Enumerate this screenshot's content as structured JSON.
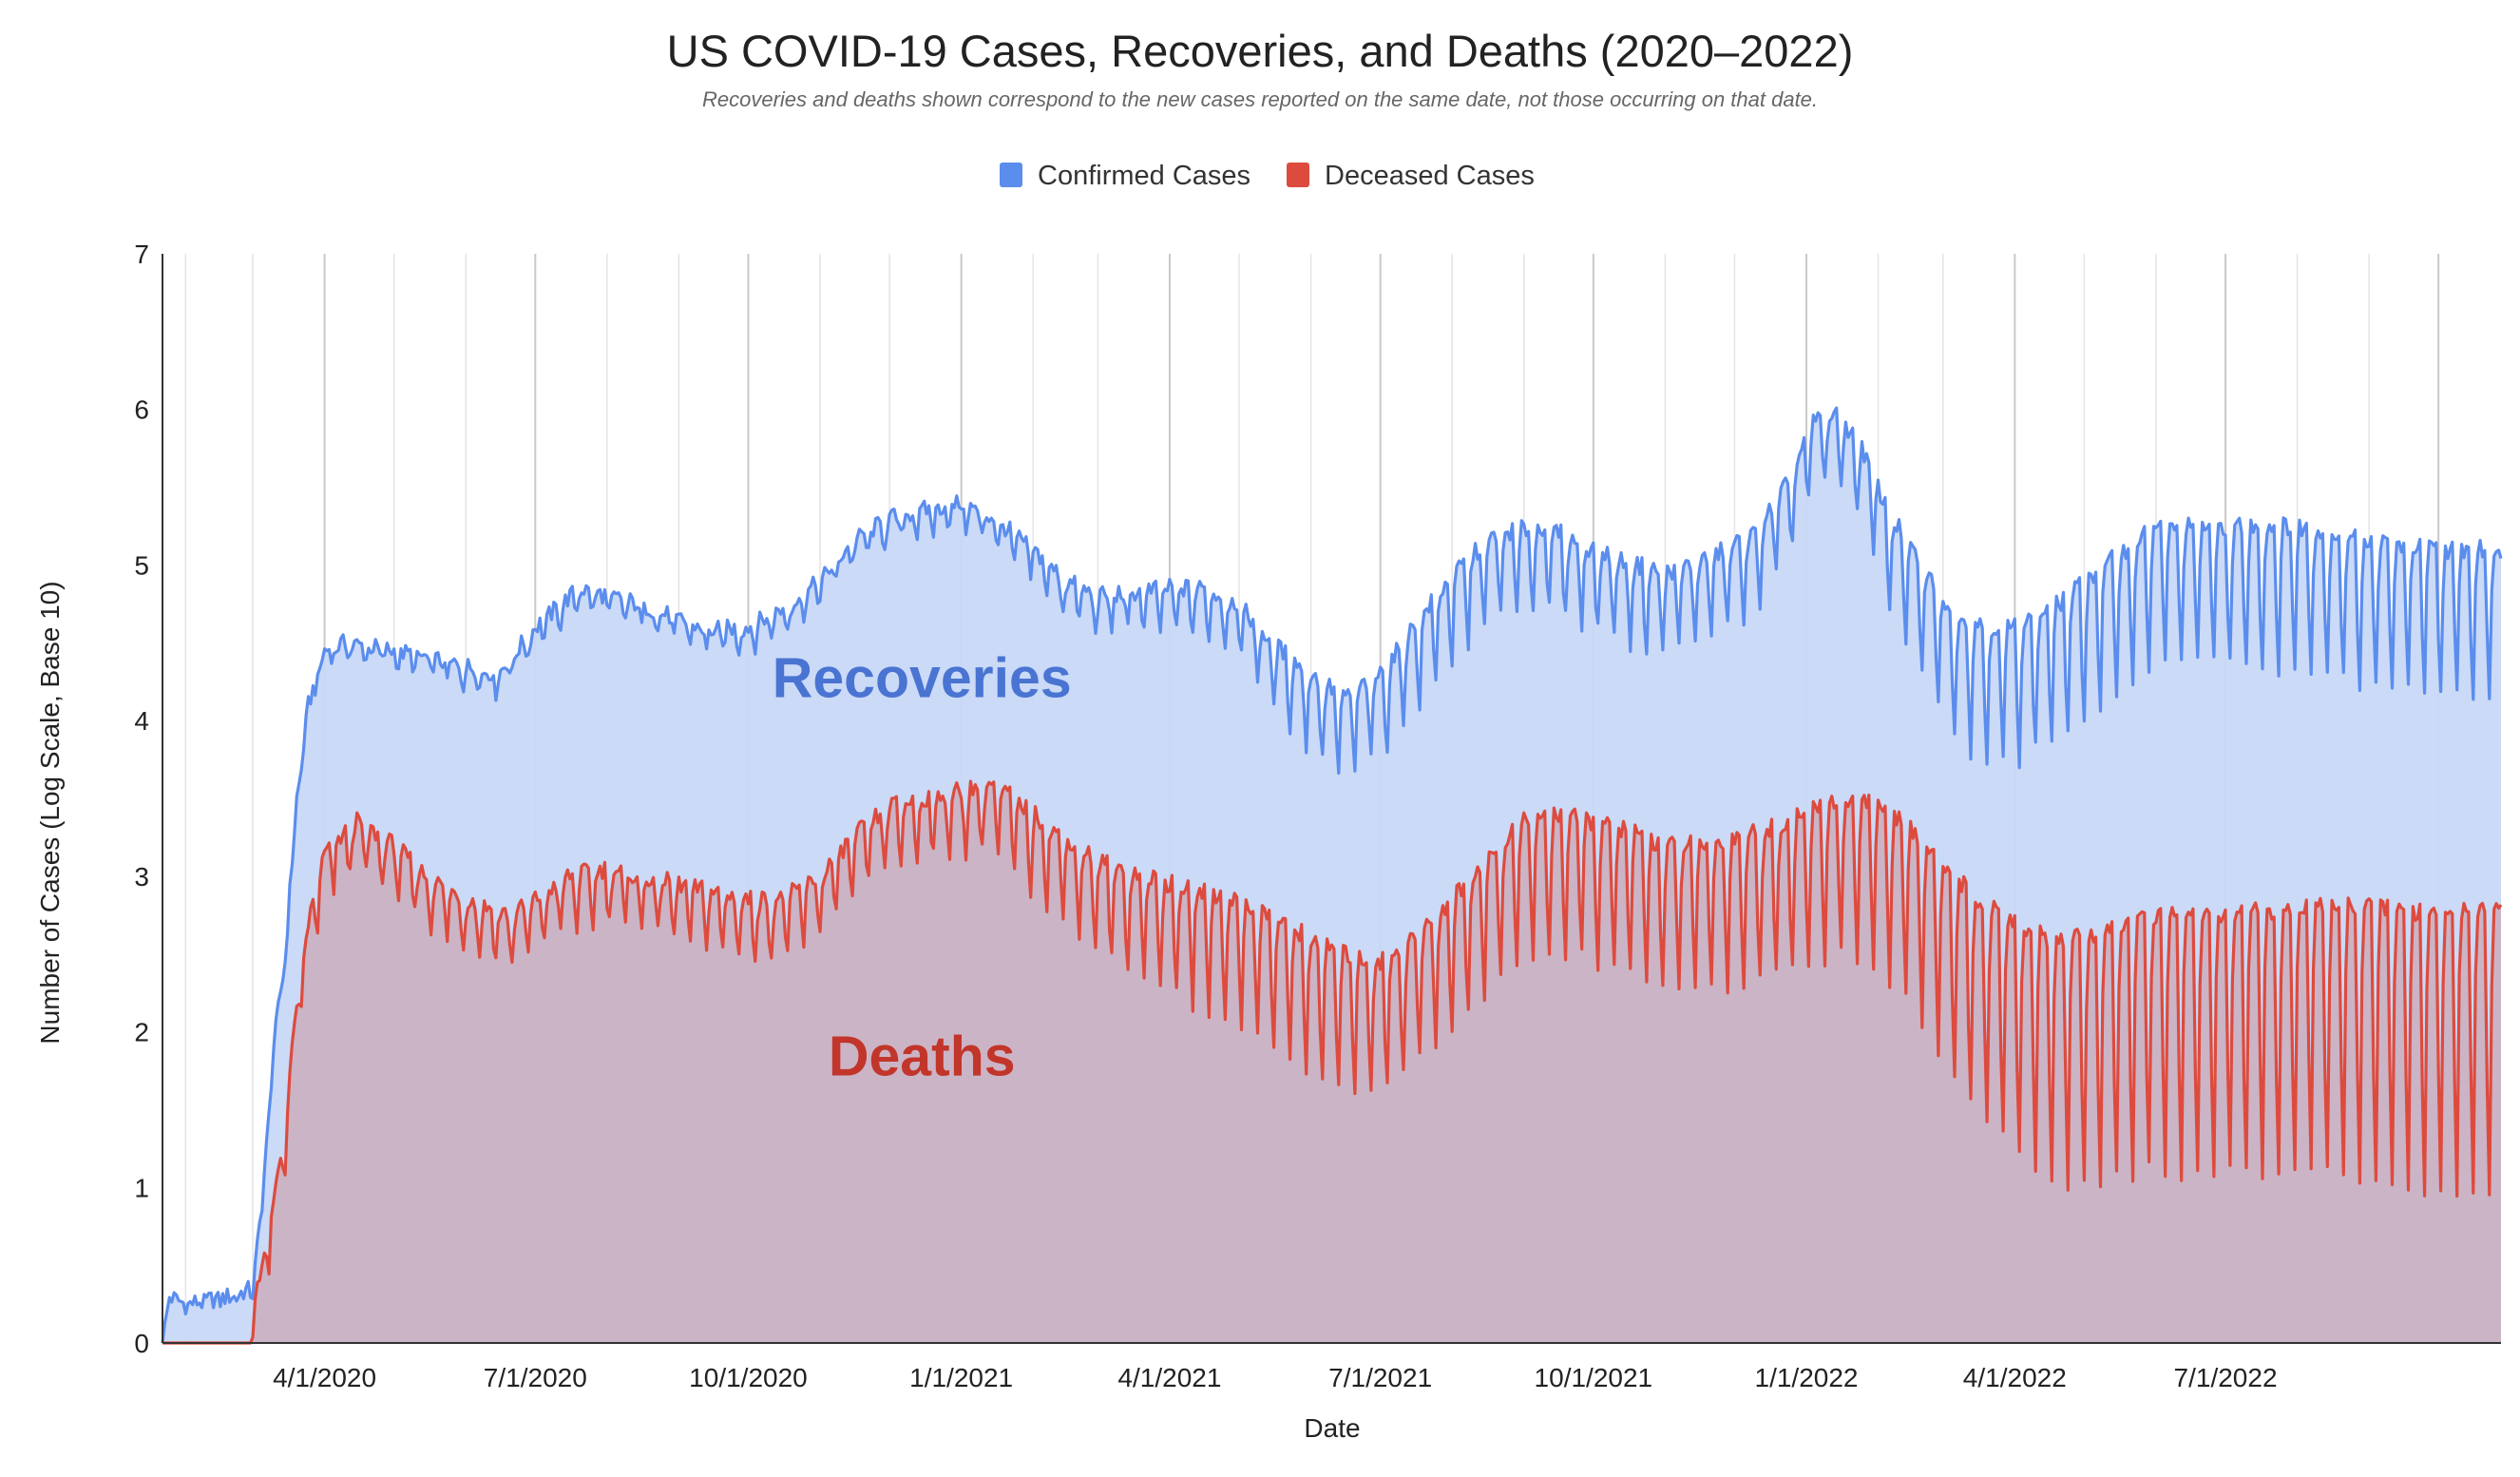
{
  "chart_data": {
    "type": "area",
    "title": "US COVID-19 Cases, Recoveries, and Deaths (2020–2022)",
    "subtitle": "Recoveries and deaths shown correspond to the new cases reported on the same date, not those occurring on that date.",
    "xlabel": "Date",
    "ylabel": "Number of Cases (Log Scale, Base 10)",
    "x_range": [
      "2020-01-22",
      "2022-10-28"
    ],
    "ylim": [
      0,
      7
    ],
    "y_ticks": [
      "0",
      "1",
      "2",
      "3",
      "4",
      "5",
      "6",
      "7"
    ],
    "x_ticks": [
      {
        "date": "2020-04-01",
        "label": "4/1/2020"
      },
      {
        "date": "2020-07-01",
        "label": "7/1/2020"
      },
      {
        "date": "2020-10-01",
        "label": "10/1/2020"
      },
      {
        "date": "2021-01-01",
        "label": "1/1/2021"
      },
      {
        "date": "2021-04-01",
        "label": "4/1/2021"
      },
      {
        "date": "2021-07-01",
        "label": "7/1/2021"
      },
      {
        "date": "2021-10-01",
        "label": "10/1/2021"
      },
      {
        "date": "2022-01-01",
        "label": "1/1/2022"
      },
      {
        "date": "2022-04-01",
        "label": "4/1/2022"
      },
      {
        "date": "2022-07-01",
        "label": "7/1/2022"
      }
    ],
    "grid": true,
    "legend_position": "top-center",
    "annotations": [
      {
        "text": "Recoveries",
        "date": "2020-12-15",
        "y": 4.15,
        "color": "#4a74d2"
      },
      {
        "text": "Deaths",
        "date": "2020-12-15",
        "y": 1.72,
        "color": "#c2352a"
      }
    ],
    "series": [
      {
        "name": "Confirmed Cases",
        "color": "#5b8ded",
        "fill": "#c7d8f7",
        "weekly_dip": 0.07,
        "dip_schedule": [
          [
            "2020-01-22",
            0
          ],
          [
            "2020-03-15",
            0.05
          ],
          [
            "2020-06-01",
            0.12
          ],
          [
            "2021-01-01",
            0.15
          ],
          [
            "2021-05-01",
            0.3
          ],
          [
            "2021-06-01",
            0.5
          ],
          [
            "2021-08-01",
            0.55
          ],
          [
            "2021-12-01",
            0.5
          ],
          [
            "2022-01-20",
            0.4
          ],
          [
            "2022-02-15",
            0.7
          ],
          [
            "2022-03-15",
            0.85
          ],
          [
            "2022-10-28",
            0.95
          ]
        ],
        "trend": [
          [
            "2020-01-22",
            0.0
          ],
          [
            "2020-01-25",
            0.3
          ],
          [
            "2020-02-01",
            0.25
          ],
          [
            "2020-02-20",
            0.3
          ],
          [
            "2020-03-01",
            0.35
          ],
          [
            "2020-03-05",
            0.9
          ],
          [
            "2020-03-10",
            1.9
          ],
          [
            "2020-03-15",
            2.5
          ],
          [
            "2020-03-20",
            3.5
          ],
          [
            "2020-03-25",
            4.1
          ],
          [
            "2020-04-01",
            4.45
          ],
          [
            "2020-04-10",
            4.5
          ],
          [
            "2020-05-01",
            4.45
          ],
          [
            "2020-06-01",
            4.35
          ],
          [
            "2020-06-15",
            4.3
          ],
          [
            "2020-07-01",
            4.6
          ],
          [
            "2020-07-20",
            4.85
          ],
          [
            "2020-08-15",
            4.75
          ],
          [
            "2020-09-01",
            4.65
          ],
          [
            "2020-09-15",
            4.58
          ],
          [
            "2020-10-01",
            4.6
          ],
          [
            "2020-10-20",
            4.75
          ],
          [
            "2020-11-01",
            4.9
          ],
          [
            "2020-11-15",
            5.15
          ],
          [
            "2020-12-01",
            5.3
          ],
          [
            "2020-12-15",
            5.35
          ],
          [
            "2021-01-01",
            5.4
          ],
          [
            "2021-01-15",
            5.3
          ],
          [
            "2021-02-01",
            5.1
          ],
          [
            "2021-02-15",
            4.9
          ],
          [
            "2021-03-01",
            4.8
          ],
          [
            "2021-04-01",
            4.85
          ],
          [
            "2021-04-15",
            4.85
          ],
          [
            "2021-05-01",
            4.75
          ],
          [
            "2021-05-15",
            4.5
          ],
          [
            "2021-06-01",
            4.3
          ],
          [
            "2021-06-15",
            4.15
          ],
          [
            "2021-07-01",
            4.3
          ],
          [
            "2021-07-20",
            4.7
          ],
          [
            "2021-08-05",
            5.0
          ],
          [
            "2021-08-20",
            5.2
          ],
          [
            "2021-09-10",
            5.25
          ],
          [
            "2021-10-01",
            5.1
          ],
          [
            "2021-10-20",
            5.0
          ],
          [
            "2021-11-01",
            4.95
          ],
          [
            "2021-11-20",
            5.05
          ],
          [
            "2021-12-10",
            5.2
          ],
          [
            "2021-12-25",
            5.55
          ],
          [
            "2022-01-05",
            5.95
          ],
          [
            "2022-01-15",
            5.95
          ],
          [
            "2022-01-25",
            5.75
          ],
          [
            "2022-02-05",
            5.35
          ],
          [
            "2022-02-20",
            5.0
          ],
          [
            "2022-03-05",
            4.7
          ],
          [
            "2022-03-20",
            4.6
          ],
          [
            "2022-04-01",
            4.6
          ],
          [
            "2022-04-20",
            4.75
          ],
          [
            "2022-05-10",
            5.0
          ],
          [
            "2022-06-01",
            5.25
          ],
          [
            "2022-07-01",
            5.25
          ],
          [
            "2022-08-01",
            5.25
          ],
          [
            "2022-09-01",
            5.15
          ],
          [
            "2022-10-01",
            5.1
          ],
          [
            "2022-10-28",
            5.1
          ]
        ]
      },
      {
        "name": "Deceased Cases",
        "color": "#dd4b3e",
        "fill": "#cbafbf",
        "weekly_dip": 0.35,
        "dip_schedule": [
          [
            "2020-01-22",
            0.2
          ],
          [
            "2020-04-01",
            0.3
          ],
          [
            "2021-01-01",
            0.4
          ],
          [
            "2021-06-01",
            0.9
          ],
          [
            "2021-07-15",
            0.8
          ],
          [
            "2021-10-01",
            0.9
          ],
          [
            "2022-02-01",
            1.0
          ],
          [
            "2022-03-01",
            1.3
          ],
          [
            "2022-05-01",
            1.6
          ],
          [
            "2022-10-28",
            1.8
          ]
        ],
        "trend": [
          [
            "2020-01-22",
            0.0
          ],
          [
            "2020-02-28",
            0.0
          ],
          [
            "2020-03-01",
            0.3
          ],
          [
            "2020-03-05",
            0.5
          ],
          [
            "2020-03-10",
            0.9
          ],
          [
            "2020-03-15",
            1.4
          ],
          [
            "2020-03-20",
            2.2
          ],
          [
            "2020-03-25",
            2.7
          ],
          [
            "2020-04-01",
            3.15
          ],
          [
            "2020-04-15",
            3.35
          ],
          [
            "2020-05-01",
            3.2
          ],
          [
            "2020-05-15",
            3.0
          ],
          [
            "2020-06-01",
            2.85
          ],
          [
            "2020-06-20",
            2.75
          ],
          [
            "2020-07-01",
            2.85
          ],
          [
            "2020-07-15",
            3.0
          ],
          [
            "2020-08-01",
            3.05
          ],
          [
            "2020-08-15",
            3.0
          ],
          [
            "2020-09-01",
            2.95
          ],
          [
            "2020-10-01",
            2.85
          ],
          [
            "2020-10-15",
            2.85
          ],
          [
            "2020-11-01",
            3.0
          ],
          [
            "2020-11-15",
            3.25
          ],
          [
            "2020-12-01",
            3.45
          ],
          [
            "2020-12-15",
            3.5
          ],
          [
            "2021-01-01",
            3.55
          ],
          [
            "2021-01-15",
            3.6
          ],
          [
            "2021-02-01",
            3.4
          ],
          [
            "2021-02-15",
            3.25
          ],
          [
            "2021-03-01",
            3.1
          ],
          [
            "2021-04-01",
            2.95
          ],
          [
            "2021-04-15",
            2.9
          ],
          [
            "2021-05-01",
            2.85
          ],
          [
            "2021-05-15",
            2.75
          ],
          [
            "2021-06-01",
            2.6
          ],
          [
            "2021-06-15",
            2.5
          ],
          [
            "2021-07-01",
            2.45
          ],
          [
            "2021-07-15",
            2.6
          ],
          [
            "2021-08-01",
            2.85
          ],
          [
            "2021-08-15",
            3.1
          ],
          [
            "2021-09-01",
            3.35
          ],
          [
            "2021-09-15",
            3.4
          ],
          [
            "2021-10-01",
            3.35
          ],
          [
            "2021-10-15",
            3.3
          ],
          [
            "2021-11-01",
            3.2
          ],
          [
            "2021-11-15",
            3.2
          ],
          [
            "2021-12-01",
            3.25
          ],
          [
            "2021-12-15",
            3.3
          ],
          [
            "2022-01-01",
            3.4
          ],
          [
            "2022-01-15",
            3.5
          ],
          [
            "2022-02-01",
            3.45
          ],
          [
            "2022-02-15",
            3.3
          ],
          [
            "2022-03-01",
            3.1
          ],
          [
            "2022-03-15",
            2.85
          ],
          [
            "2022-04-01",
            2.7
          ],
          [
            "2022-04-15",
            2.6
          ],
          [
            "2022-05-01",
            2.6
          ],
          [
            "2022-06-01",
            2.75
          ],
          [
            "2022-07-01",
            2.75
          ],
          [
            "2022-08-01",
            2.8
          ],
          [
            "2022-09-01",
            2.8
          ],
          [
            "2022-10-01",
            2.75
          ],
          [
            "2022-10-28",
            2.8
          ]
        ]
      }
    ]
  }
}
